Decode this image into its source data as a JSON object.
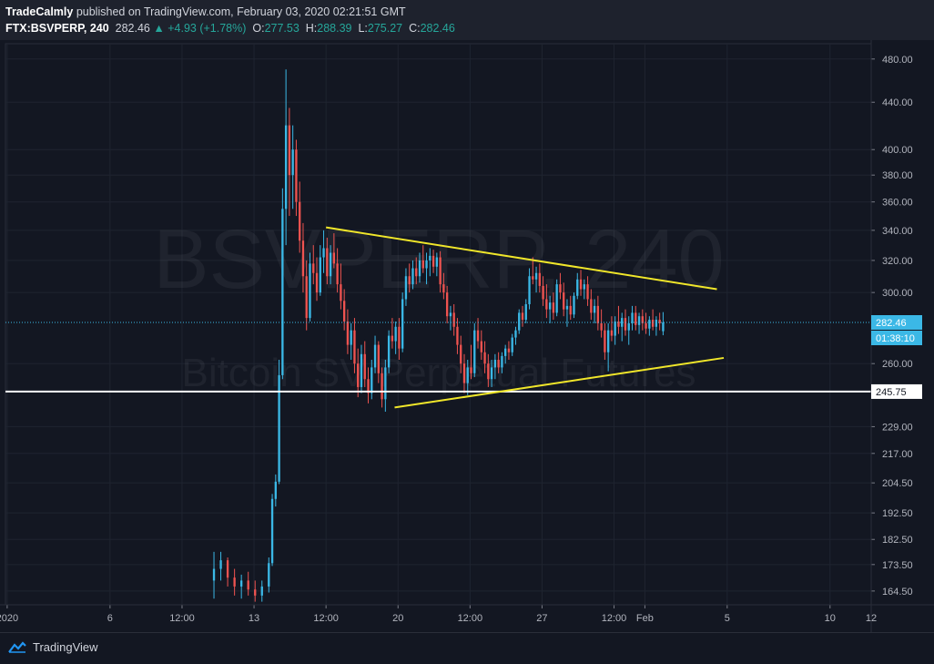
{
  "header": {
    "author": "TradeCalmly",
    "published_text": "published on TradingView.com, February 03, 2020 02:21:51 GMT",
    "symbol": "FTX:BSVPERP, 240",
    "last": "282.46",
    "change": "+4.93 (+1.78%)",
    "o_label": "O:",
    "o": "277.53",
    "h_label": "H:",
    "h": "288.39",
    "l_label": "L:",
    "l": "275.27",
    "c_label": "C:",
    "c": "282.46"
  },
  "watermark": {
    "symbol": "BSVPERP, 240",
    "description": "Bitcoin SV Perpetual Futures"
  },
  "footer": {
    "brand": "TradingView"
  },
  "price_tags": {
    "last": "282.46",
    "countdown": "01:38:10",
    "support": "245.75"
  },
  "colors": {
    "background": "#131722",
    "up": "#3bb8e6",
    "down": "#ef5350",
    "trendline": "#f0e62a",
    "support_line": "#ffffff",
    "grid": "#1f2430"
  },
  "chart_data": {
    "type": "candlestick",
    "y_scale": "log",
    "ylim": [
      160,
      495
    ],
    "y_ticks": [
      "480.00",
      "440.00",
      "400.00",
      "380.00",
      "360.00",
      "340.00",
      "320.00",
      "300.00",
      "260.00",
      "229.00",
      "217.00",
      "204.50",
      "192.50",
      "182.50",
      "173.50",
      "164.50"
    ],
    "y_tick_values": [
      480,
      440,
      400,
      380,
      360,
      340,
      320,
      300,
      260,
      229,
      217,
      204.5,
      192.5,
      182.5,
      173.5,
      164.5
    ],
    "x_ticks": [
      "2020",
      "6",
      "12:00",
      "13",
      "12:00",
      "20",
      "12:00",
      "27",
      "12:00",
      "Feb",
      "5",
      "10",
      "12"
    ],
    "x_tick_dates": [
      "2020-01-01",
      "2020-01-06",
      "2020-01-09 12:00",
      "2020-01-13",
      "2020-01-16 12:00",
      "2020-01-20",
      "2020-01-23 12:00",
      "2020-01-27",
      "2020-01-30 12:00",
      "2020-02-01",
      "2020-02-05",
      "2020-02-10",
      "2020-02-12"
    ],
    "x_range": [
      "2019-12-31 22:00",
      "2020-02-12 00:00"
    ],
    "support_level": 245.75,
    "last_price": 282.46,
    "trendlines": [
      {
        "name": "upper",
        "from": {
          "date": "2020-01-16 12:00",
          "price": 342
        },
        "to": {
          "date": "2020-02-04 12:00",
          "price": 302
        }
      },
      {
        "name": "lower",
        "from": {
          "date": "2020-01-19 20:00",
          "price": 238
        },
        "to": {
          "date": "2020-02-04 20:00",
          "price": 263
        }
      }
    ],
    "ohlc": [
      {
        "t": "2020-01-11 00:00",
        "o": 168,
        "h": 178,
        "l": 162,
        "c": 172
      },
      {
        "t": "2020-01-11 08:00",
        "o": 172,
        "h": 178,
        "l": 168,
        "c": 175
      },
      {
        "t": "2020-01-11 16:00",
        "o": 175,
        "h": 176,
        "l": 166,
        "c": 169
      },
      {
        "t": "2020-01-12 00:00",
        "o": 169,
        "h": 172,
        "l": 163,
        "c": 166
      },
      {
        "t": "2020-01-12 08:00",
        "o": 166,
        "h": 170,
        "l": 162,
        "c": 168
      },
      {
        "t": "2020-01-12 16:00",
        "o": 168,
        "h": 171,
        "l": 163,
        "c": 165
      },
      {
        "t": "2020-01-13 00:00",
        "o": 165,
        "h": 168,
        "l": 161,
        "c": 163
      },
      {
        "t": "2020-01-13 08:00",
        "o": 163,
        "h": 168,
        "l": 161,
        "c": 166
      },
      {
        "t": "2020-01-13 16:00",
        "o": 166,
        "h": 176,
        "l": 164,
        "c": 174
      },
      {
        "t": "2020-01-13 20:00",
        "o": 174,
        "h": 200,
        "l": 173,
        "c": 198
      },
      {
        "t": "2020-01-14 00:00",
        "o": 198,
        "h": 208,
        "l": 195,
        "c": 205
      },
      {
        "t": "2020-01-14 04:00",
        "o": 205,
        "h": 262,
        "l": 204,
        "c": 254
      },
      {
        "t": "2020-01-14 08:00",
        "o": 254,
        "h": 370,
        "l": 252,
        "c": 355
      },
      {
        "t": "2020-01-14 12:00",
        "o": 355,
        "h": 470,
        "l": 330,
        "c": 420
      },
      {
        "t": "2020-01-14 16:00",
        "o": 420,
        "h": 435,
        "l": 350,
        "c": 380
      },
      {
        "t": "2020-01-14 20:00",
        "o": 380,
        "h": 420,
        "l": 355,
        "c": 400
      },
      {
        "t": "2020-01-15 00:00",
        "o": 400,
        "h": 408,
        "l": 350,
        "c": 360
      },
      {
        "t": "2020-01-15 04:00",
        "o": 360,
        "h": 375,
        "l": 325,
        "c": 333
      },
      {
        "t": "2020-01-15 08:00",
        "o": 333,
        "h": 345,
        "l": 300,
        "c": 310
      },
      {
        "t": "2020-01-15 12:00",
        "o": 310,
        "h": 320,
        "l": 278,
        "c": 285
      },
      {
        "t": "2020-01-15 16:00",
        "o": 285,
        "h": 325,
        "l": 283,
        "c": 318
      },
      {
        "t": "2020-01-15 20:00",
        "o": 318,
        "h": 330,
        "l": 305,
        "c": 312
      },
      {
        "t": "2020-01-16 00:00",
        "o": 312,
        "h": 322,
        "l": 295,
        "c": 300
      },
      {
        "t": "2020-01-16 04:00",
        "o": 300,
        "h": 330,
        "l": 298,
        "c": 322
      },
      {
        "t": "2020-01-16 08:00",
        "o": 322,
        "h": 340,
        "l": 312,
        "c": 328
      },
      {
        "t": "2020-01-16 12:00",
        "o": 328,
        "h": 335,
        "l": 305,
        "c": 310
      },
      {
        "t": "2020-01-16 16:00",
        "o": 310,
        "h": 330,
        "l": 305,
        "c": 325
      },
      {
        "t": "2020-01-16 20:00",
        "o": 325,
        "h": 338,
        "l": 315,
        "c": 318
      },
      {
        "t": "2020-01-17 00:00",
        "o": 318,
        "h": 328,
        "l": 300,
        "c": 305
      },
      {
        "t": "2020-01-17 04:00",
        "o": 305,
        "h": 318,
        "l": 290,
        "c": 295
      },
      {
        "t": "2020-01-17 08:00",
        "o": 295,
        "h": 302,
        "l": 278,
        "c": 283
      },
      {
        "t": "2020-01-17 12:00",
        "o": 283,
        "h": 290,
        "l": 265,
        "c": 270
      },
      {
        "t": "2020-01-17 16:00",
        "o": 270,
        "h": 282,
        "l": 262,
        "c": 278
      },
      {
        "t": "2020-01-17 20:00",
        "o": 278,
        "h": 285,
        "l": 255,
        "c": 260
      },
      {
        "t": "2020-01-18 00:00",
        "o": 260,
        "h": 268,
        "l": 243,
        "c": 248
      },
      {
        "t": "2020-01-18 04:00",
        "o": 248,
        "h": 270,
        "l": 245,
        "c": 265
      },
      {
        "t": "2020-01-18 08:00",
        "o": 265,
        "h": 272,
        "l": 248,
        "c": 252
      },
      {
        "t": "2020-01-18 12:00",
        "o": 252,
        "h": 258,
        "l": 240,
        "c": 245
      },
      {
        "t": "2020-01-18 16:00",
        "o": 245,
        "h": 262,
        "l": 242,
        "c": 258
      },
      {
        "t": "2020-01-18 20:00",
        "o": 258,
        "h": 275,
        "l": 255,
        "c": 270
      },
      {
        "t": "2020-01-19 00:00",
        "o": 270,
        "h": 272,
        "l": 250,
        "c": 255
      },
      {
        "t": "2020-01-19 04:00",
        "o": 255,
        "h": 258,
        "l": 238,
        "c": 242
      },
      {
        "t": "2020-01-19 08:00",
        "o": 242,
        "h": 262,
        "l": 236,
        "c": 258
      },
      {
        "t": "2020-01-19 12:00",
        "o": 258,
        "h": 278,
        "l": 255,
        "c": 275
      },
      {
        "t": "2020-01-19 16:00",
        "o": 275,
        "h": 285,
        "l": 268,
        "c": 272
      },
      {
        "t": "2020-01-19 20:00",
        "o": 272,
        "h": 283,
        "l": 265,
        "c": 280
      },
      {
        "t": "2020-01-20 00:00",
        "o": 280,
        "h": 285,
        "l": 262,
        "c": 268
      },
      {
        "t": "2020-01-20 04:00",
        "o": 268,
        "h": 300,
        "l": 266,
        "c": 296
      },
      {
        "t": "2020-01-20 08:00",
        "o": 296,
        "h": 315,
        "l": 292,
        "c": 310
      },
      {
        "t": "2020-01-20 12:00",
        "o": 310,
        "h": 318,
        "l": 300,
        "c": 305
      },
      {
        "t": "2020-01-20 16:00",
        "o": 305,
        "h": 320,
        "l": 302,
        "c": 315
      },
      {
        "t": "2020-01-20 20:00",
        "o": 315,
        "h": 322,
        "l": 305,
        "c": 310
      },
      {
        "t": "2020-01-21 00:00",
        "o": 310,
        "h": 325,
        "l": 306,
        "c": 320
      },
      {
        "t": "2020-01-21 04:00",
        "o": 320,
        "h": 330,
        "l": 312,
        "c": 315
      },
      {
        "t": "2020-01-21 08:00",
        "o": 315,
        "h": 325,
        "l": 305,
        "c": 320
      },
      {
        "t": "2020-01-21 12:00",
        "o": 320,
        "h": 328,
        "l": 310,
        "c": 323
      },
      {
        "t": "2020-01-21 16:00",
        "o": 323,
        "h": 327,
        "l": 312,
        "c": 316
      },
      {
        "t": "2020-01-21 20:00",
        "o": 316,
        "h": 325,
        "l": 310,
        "c": 322
      },
      {
        "t": "2020-01-22 00:00",
        "o": 322,
        "h": 326,
        "l": 300,
        "c": 305
      },
      {
        "t": "2020-01-22 04:00",
        "o": 305,
        "h": 312,
        "l": 296,
        "c": 300
      },
      {
        "t": "2020-01-22 08:00",
        "o": 300,
        "h": 304,
        "l": 282,
        "c": 286
      },
      {
        "t": "2020-01-22 12:00",
        "o": 286,
        "h": 292,
        "l": 278,
        "c": 288
      },
      {
        "t": "2020-01-22 16:00",
        "o": 288,
        "h": 293,
        "l": 275,
        "c": 280
      },
      {
        "t": "2020-01-22 20:00",
        "o": 280,
        "h": 285,
        "l": 265,
        "c": 270
      },
      {
        "t": "2020-01-23 00:00",
        "o": 270,
        "h": 275,
        "l": 255,
        "c": 260
      },
      {
        "t": "2020-01-23 04:00",
        "o": 260,
        "h": 265,
        "l": 245,
        "c": 250
      },
      {
        "t": "2020-01-23 08:00",
        "o": 250,
        "h": 262,
        "l": 244,
        "c": 258
      },
      {
        "t": "2020-01-23 12:00",
        "o": 258,
        "h": 270,
        "l": 252,
        "c": 255
      },
      {
        "t": "2020-01-23 16:00",
        "o": 255,
        "h": 282,
        "l": 253,
        "c": 278
      },
      {
        "t": "2020-01-23 20:00",
        "o": 278,
        "h": 285,
        "l": 268,
        "c": 272
      },
      {
        "t": "2020-01-24 00:00",
        "o": 272,
        "h": 278,
        "l": 262,
        "c": 266
      },
      {
        "t": "2020-01-24 04:00",
        "o": 266,
        "h": 272,
        "l": 255,
        "c": 260
      },
      {
        "t": "2020-01-24 08:00",
        "o": 260,
        "h": 265,
        "l": 248,
        "c": 252
      },
      {
        "t": "2020-01-24 12:00",
        "o": 252,
        "h": 262,
        "l": 248,
        "c": 258
      },
      {
        "t": "2020-01-24 16:00",
        "o": 258,
        "h": 265,
        "l": 252,
        "c": 262
      },
      {
        "t": "2020-01-24 20:00",
        "o": 262,
        "h": 266,
        "l": 255,
        "c": 258
      },
      {
        "t": "2020-01-25 00:00",
        "o": 258,
        "h": 266,
        "l": 255,
        "c": 264
      },
      {
        "t": "2020-01-25 04:00",
        "o": 264,
        "h": 270,
        "l": 260,
        "c": 268
      },
      {
        "t": "2020-01-25 08:00",
        "o": 268,
        "h": 272,
        "l": 262,
        "c": 266
      },
      {
        "t": "2020-01-25 12:00",
        "o": 266,
        "h": 276,
        "l": 264,
        "c": 274
      },
      {
        "t": "2020-01-25 16:00",
        "o": 274,
        "h": 280,
        "l": 270,
        "c": 278
      },
      {
        "t": "2020-01-25 20:00",
        "o": 278,
        "h": 290,
        "l": 276,
        "c": 288
      },
      {
        "t": "2020-01-26 00:00",
        "o": 288,
        "h": 292,
        "l": 280,
        "c": 284
      },
      {
        "t": "2020-01-26 04:00",
        "o": 284,
        "h": 296,
        "l": 282,
        "c": 293
      },
      {
        "t": "2020-01-26 08:00",
        "o": 293,
        "h": 315,
        "l": 290,
        "c": 310
      },
      {
        "t": "2020-01-26 12:00",
        "o": 310,
        "h": 322,
        "l": 305,
        "c": 308
      },
      {
        "t": "2020-01-26 16:00",
        "o": 308,
        "h": 316,
        "l": 300,
        "c": 312
      },
      {
        "t": "2020-01-26 20:00",
        "o": 312,
        "h": 318,
        "l": 300,
        "c": 304
      },
      {
        "t": "2020-01-27 00:00",
        "o": 304,
        "h": 310,
        "l": 292,
        "c": 296
      },
      {
        "t": "2020-01-27 04:00",
        "o": 296,
        "h": 305,
        "l": 285,
        "c": 290
      },
      {
        "t": "2020-01-27 08:00",
        "o": 290,
        "h": 298,
        "l": 282,
        "c": 294
      },
      {
        "t": "2020-01-27 12:00",
        "o": 294,
        "h": 300,
        "l": 284,
        "c": 288
      },
      {
        "t": "2020-01-27 16:00",
        "o": 288,
        "h": 308,
        "l": 286,
        "c": 305
      },
      {
        "t": "2020-01-27 20:00",
        "o": 305,
        "h": 312,
        "l": 296,
        "c": 300
      },
      {
        "t": "2020-01-28 00:00",
        "o": 300,
        "h": 306,
        "l": 286,
        "c": 290
      },
      {
        "t": "2020-01-28 04:00",
        "o": 290,
        "h": 296,
        "l": 280,
        "c": 292
      },
      {
        "t": "2020-01-28 08:00",
        "o": 292,
        "h": 298,
        "l": 284,
        "c": 287
      },
      {
        "t": "2020-01-28 12:00",
        "o": 287,
        "h": 300,
        "l": 285,
        "c": 298
      },
      {
        "t": "2020-01-28 16:00",
        "o": 298,
        "h": 312,
        "l": 296,
        "c": 308
      },
      {
        "t": "2020-01-28 20:00",
        "o": 308,
        "h": 314,
        "l": 298,
        "c": 302
      },
      {
        "t": "2020-01-29 00:00",
        "o": 302,
        "h": 308,
        "l": 296,
        "c": 305
      },
      {
        "t": "2020-01-29 04:00",
        "o": 305,
        "h": 310,
        "l": 292,
        "c": 296
      },
      {
        "t": "2020-01-29 08:00",
        "o": 296,
        "h": 302,
        "l": 284,
        "c": 288
      },
      {
        "t": "2020-01-29 12:00",
        "o": 288,
        "h": 296,
        "l": 282,
        "c": 292
      },
      {
        "t": "2020-01-29 16:00",
        "o": 292,
        "h": 298,
        "l": 278,
        "c": 282
      },
      {
        "t": "2020-01-29 20:00",
        "o": 282,
        "h": 290,
        "l": 274,
        "c": 278
      },
      {
        "t": "2020-01-30 00:00",
        "o": 278,
        "h": 282,
        "l": 262,
        "c": 266
      },
      {
        "t": "2020-01-30 04:00",
        "o": 266,
        "h": 282,
        "l": 256,
        "c": 278
      },
      {
        "t": "2020-01-30 08:00",
        "o": 278,
        "h": 286,
        "l": 272,
        "c": 275
      },
      {
        "t": "2020-01-30 12:00",
        "o": 275,
        "h": 286,
        "l": 270,
        "c": 283
      },
      {
        "t": "2020-01-30 16:00",
        "o": 283,
        "h": 292,
        "l": 276,
        "c": 280
      },
      {
        "t": "2020-01-30 20:00",
        "o": 280,
        "h": 288,
        "l": 272,
        "c": 285
      },
      {
        "t": "2020-01-31 00:00",
        "o": 285,
        "h": 290,
        "l": 275,
        "c": 278
      },
      {
        "t": "2020-01-31 04:00",
        "o": 278,
        "h": 286,
        "l": 270,
        "c": 282
      },
      {
        "t": "2020-01-31 08:00",
        "o": 282,
        "h": 292,
        "l": 278,
        "c": 288
      },
      {
        "t": "2020-01-31 12:00",
        "o": 288,
        "h": 292,
        "l": 278,
        "c": 281
      },
      {
        "t": "2020-01-31 16:00",
        "o": 281,
        "h": 288,
        "l": 276,
        "c": 286
      },
      {
        "t": "2020-01-31 20:00",
        "o": 286,
        "h": 290,
        "l": 278,
        "c": 282
      },
      {
        "t": "2020-02-01 00:00",
        "o": 282,
        "h": 288,
        "l": 276,
        "c": 279
      },
      {
        "t": "2020-02-01 04:00",
        "o": 279,
        "h": 286,
        "l": 275,
        "c": 284
      },
      {
        "t": "2020-02-01 08:00",
        "o": 284,
        "h": 290,
        "l": 278,
        "c": 280
      },
      {
        "t": "2020-02-01 12:00",
        "o": 280,
        "h": 286,
        "l": 275,
        "c": 284
      },
      {
        "t": "2020-02-01 16:00",
        "o": 284,
        "h": 288,
        "l": 278,
        "c": 282
      },
      {
        "t": "2020-02-01 20:00",
        "o": 277.53,
        "h": 288.39,
        "l": 275.27,
        "c": 282.46
      }
    ]
  }
}
